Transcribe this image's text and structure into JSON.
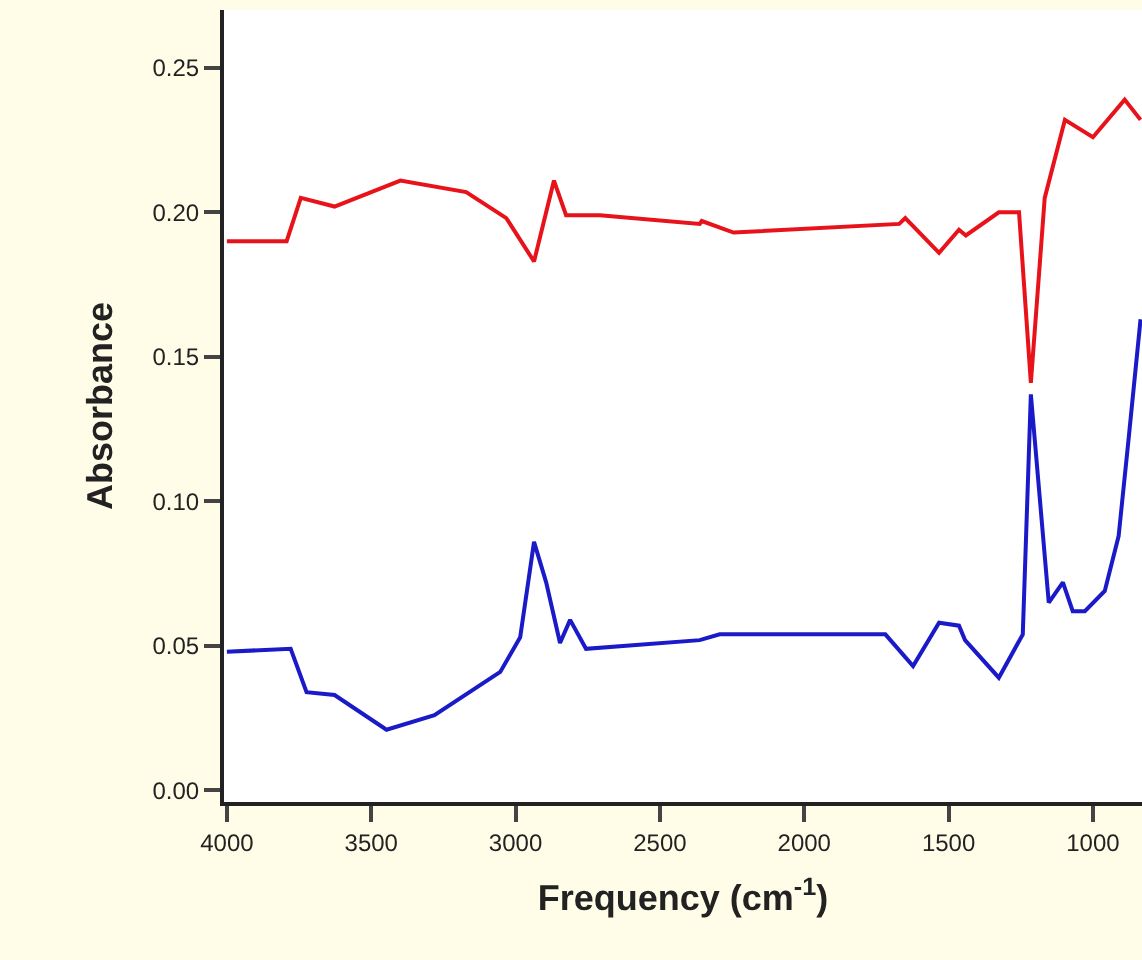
{
  "chart_data": {
    "type": "line",
    "xlabel": "Frequency (cm$^{-1}$)",
    "ylabel": "Absorbance",
    "xlim": [
      4010,
      830
    ],
    "ylim": [
      -0.004,
      0.27
    ],
    "xticks": [
      4000,
      3500,
      3000,
      2500,
      2000,
      1500,
      1000
    ],
    "yticks": [
      {
        "value": 0,
        "label": "0.00"
      },
      0.05,
      {
        "value": 0.1,
        "label": "0.10"
      },
      0.15,
      {
        "value": 0.2,
        "label": "0.20"
      },
      0.25
    ],
    "marker": "none",
    "line_style": "solid",
    "series": [
      {
        "color": "#e8131a",
        "x": [
          4000,
          3793,
          3744,
          3627,
          3399,
          3171,
          3032,
          2936,
          2867,
          2825,
          2708,
          2362,
          2355,
          2245,
          1671,
          1650,
          1533,
          1464,
          1440,
          1326,
          1256,
          1215,
          1167,
          1097,
          1000,
          890,
          835
        ],
        "values": [
          0.19,
          0.19,
          0.205,
          0.202,
          0.211,
          0.207,
          0.198,
          0.183,
          0.211,
          0.199,
          0.199,
          0.196,
          0.197,
          0.193,
          0.196,
          0.198,
          0.186,
          0.194,
          0.192,
          0.2,
          0.2,
          0.141,
          0.205,
          0.232,
          0.226,
          0.239,
          0.232
        ]
      },
      {
        "color": "#1a1ac8",
        "x": [
          4000,
          3779,
          3724,
          3627,
          3447,
          3281,
          3053,
          2984,
          2936,
          2894,
          2846,
          2811,
          2756,
          2362,
          2293,
          1719,
          1623,
          1533,
          1464,
          1443,
          1326,
          1243,
          1215,
          1153,
          1104,
          1070,
          1028,
          959,
          911,
          876,
          835
        ],
        "values": [
          0.048,
          0.049,
          0.034,
          0.033,
          0.021,
          0.026,
          0.041,
          0.053,
          0.086,
          0.072,
          0.051,
          0.059,
          0.049,
          0.052,
          0.054,
          0.054,
          0.043,
          0.058,
          0.057,
          0.052,
          0.039,
          0.054,
          0.137,
          0.065,
          0.072,
          0.062,
          0.062,
          0.069,
          0.088,
          0.122,
          0.163
        ]
      }
    ]
  }
}
